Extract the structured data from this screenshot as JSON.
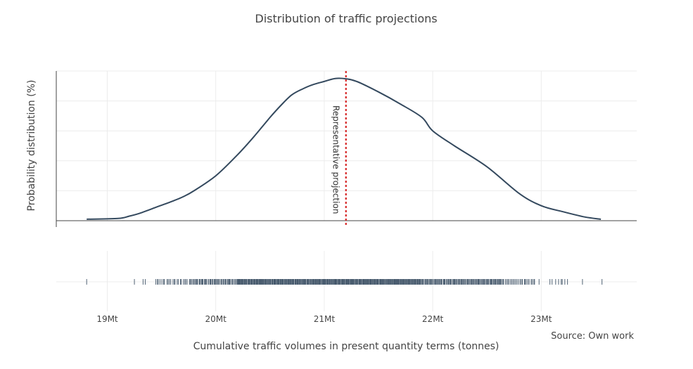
{
  "chart_data": {
    "type": "line",
    "title": "Distribution of traffic projections",
    "xlabel": "Cumulative traffic volumes in present quantity terms (tonnes)",
    "ylabel": "Probability distribution (%)",
    "source": "Source: Own work",
    "x_unit": "Mt",
    "xlim": [
      18.53,
      23.88
    ],
    "ylim": [
      0,
      1.0
    ],
    "xticks": [
      {
        "value": 19,
        "label": "19Mt"
      },
      {
        "value": 20,
        "label": "20Mt"
      },
      {
        "value": 21,
        "label": "21Mt"
      },
      {
        "value": 22,
        "label": "22Mt"
      },
      {
        "value": 23,
        "label": "23Mt"
      }
    ],
    "grid": true,
    "line_color": "#34495e",
    "density": {
      "x": [
        18.81,
        19.1,
        19.2,
        19.3,
        19.45,
        19.6,
        19.7,
        19.8,
        20.0,
        20.2,
        20.35,
        20.5,
        20.6,
        20.7,
        20.8,
        20.9,
        21.0,
        21.1,
        21.2,
        21.3,
        21.5,
        21.7,
        21.9,
        22.0,
        22.2,
        22.5,
        22.8,
        23.0,
        23.2,
        23.4,
        23.55
      ],
      "y": [
        0.01,
        0.015,
        0.03,
        0.05,
        0.09,
        0.13,
        0.16,
        0.2,
        0.3,
        0.44,
        0.56,
        0.69,
        0.77,
        0.84,
        0.88,
        0.91,
        0.93,
        0.95,
        0.948,
        0.93,
        0.86,
        0.78,
        0.69,
        0.6,
        0.5,
        0.36,
        0.18,
        0.1,
        0.06,
        0.025,
        0.01
      ]
    },
    "reference_line": {
      "x": 21.2,
      "label": "Representative projection",
      "color": "#d62728"
    },
    "rug_color": "#34495e",
    "rug_isolated": [
      18.81,
      19.25,
      19.33,
      19.35,
      22.98,
      23.08,
      23.1,
      23.38,
      23.56
    ],
    "rug_bands": [
      {
        "from": 19.44,
        "to": 19.75,
        "n": 22
      },
      {
        "from": 19.75,
        "to": 20.2,
        "n": 55
      },
      {
        "from": 20.2,
        "to": 21.9,
        "n": 340
      },
      {
        "from": 21.9,
        "to": 22.65,
        "n": 110
      },
      {
        "from": 22.65,
        "to": 22.95,
        "n": 24
      },
      {
        "from": 23.12,
        "to": 23.25,
        "n": 6
      }
    ]
  }
}
